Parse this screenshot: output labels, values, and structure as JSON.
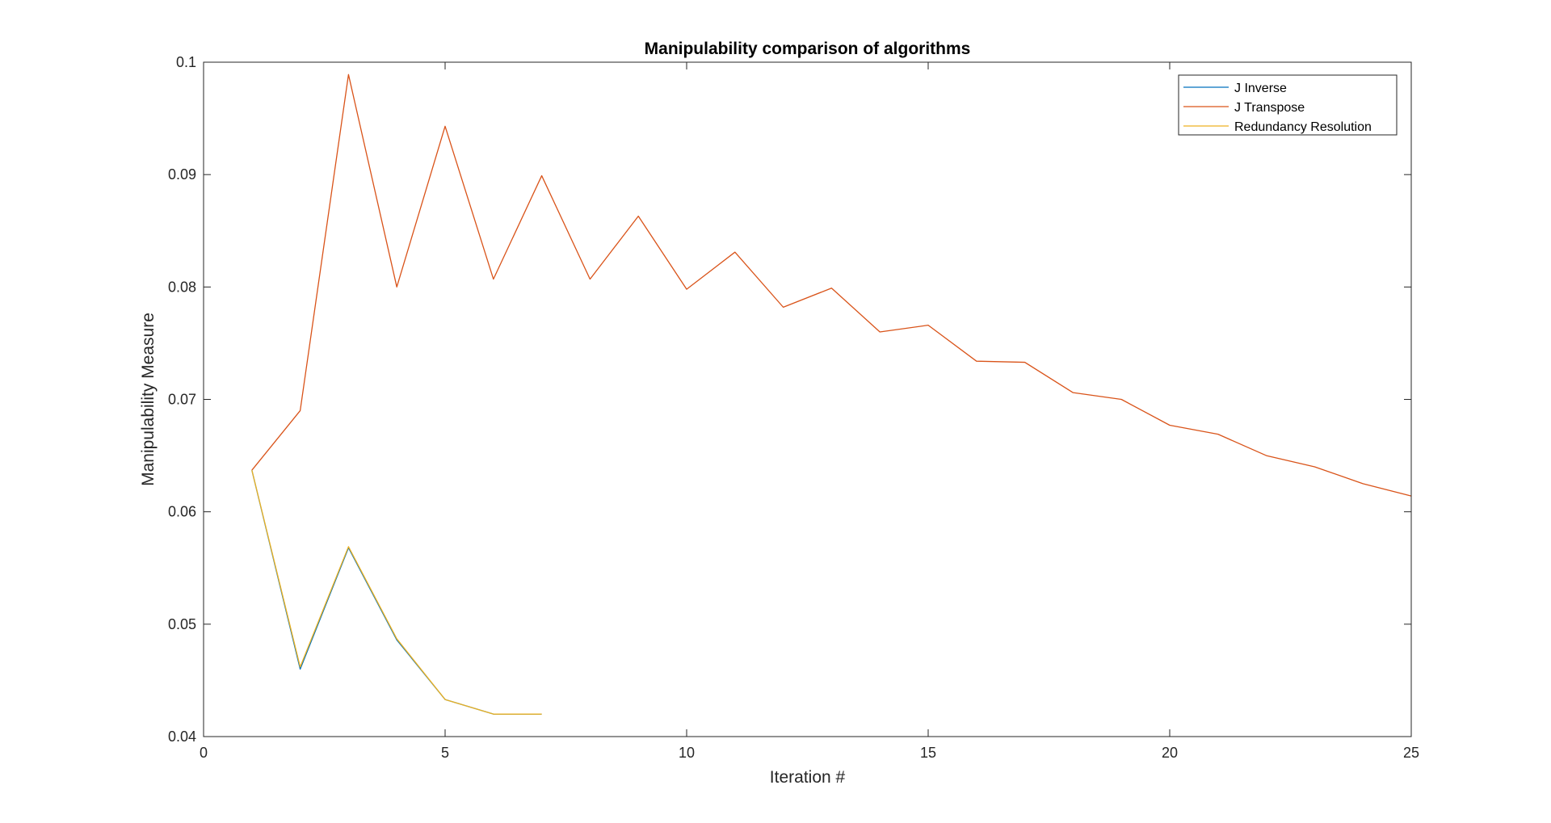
{
  "chart_data": {
    "type": "line",
    "title": "Manipulability comparison of algorithms",
    "xlabel": "Iteration #",
    "ylabel": "Manipulability Measure",
    "xlim": [
      0,
      25
    ],
    "ylim": [
      0.04,
      0.1
    ],
    "xticks": [
      0,
      5,
      10,
      15,
      20,
      25
    ],
    "xtick_labels": [
      "0",
      "5",
      "10",
      "15",
      "20",
      "25"
    ],
    "yticks": [
      0.04,
      0.05,
      0.06,
      0.07,
      0.08,
      0.09,
      0.1
    ],
    "ytick_labels": [
      "0.04",
      "0.05",
      "0.06",
      "0.07",
      "0.08",
      "0.09",
      "0.1"
    ],
    "grid": false,
    "legend_position": "top-right",
    "series": [
      {
        "name": "J Inverse",
        "color": "#0072BD",
        "x": [
          1,
          2,
          3,
          4,
          5,
          6,
          7
        ],
        "y": [
          0.0637,
          0.046,
          0.0568,
          0.0486,
          0.0433,
          0.042,
          0.042
        ]
      },
      {
        "name": "J Transpose",
        "color": "#D95319",
        "x": [
          1,
          2,
          3,
          4,
          5,
          6,
          7,
          8,
          9,
          10,
          11,
          12,
          13,
          14,
          15,
          16,
          17,
          18,
          19,
          20,
          21,
          22,
          23,
          24,
          25
        ],
        "y": [
          0.0637,
          0.069,
          0.0989,
          0.08,
          0.0943,
          0.0807,
          0.0899,
          0.0807,
          0.0863,
          0.0798,
          0.0831,
          0.0782,
          0.0799,
          0.076,
          0.0766,
          0.0734,
          0.0733,
          0.0706,
          0.07,
          0.0677,
          0.0669,
          0.065,
          0.064,
          0.0625,
          0.0614
        ]
      },
      {
        "name": "Redundancy Resolution",
        "color": "#EDB120",
        "x": [
          1,
          2,
          3,
          4,
          5,
          6,
          7
        ],
        "y": [
          0.0637,
          0.0462,
          0.0569,
          0.0487,
          0.0433,
          0.042,
          0.042
        ]
      }
    ]
  }
}
